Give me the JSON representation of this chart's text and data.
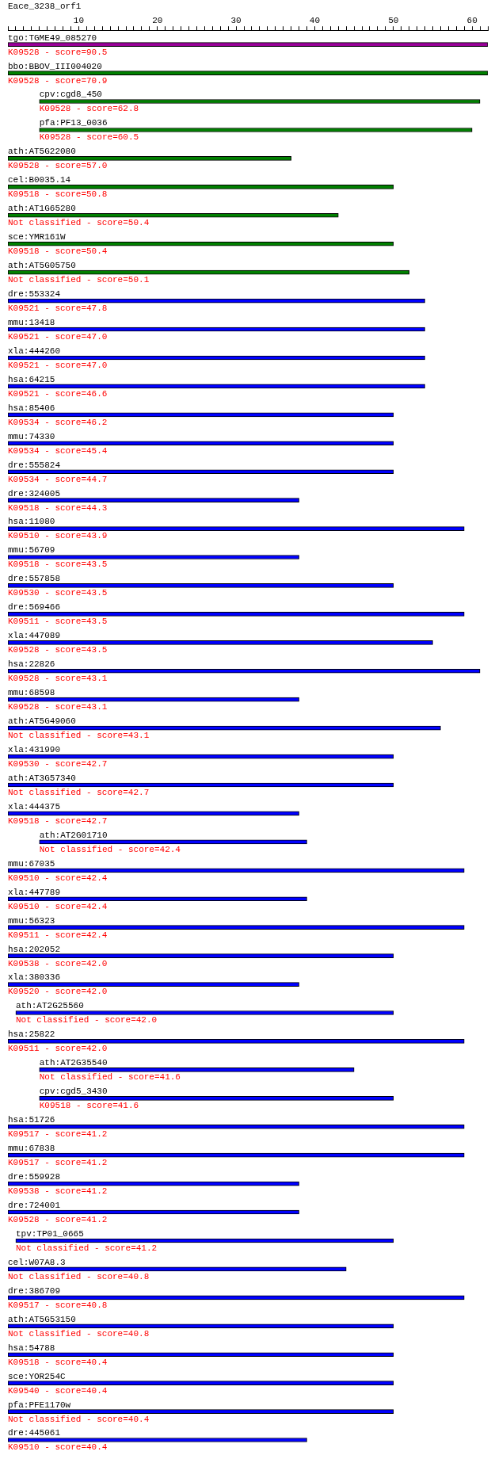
{
  "chart_data": {
    "type": "bar",
    "orientation": "horizontal",
    "title": "Eace_3238_orf1",
    "grid": false,
    "xlim": [
      1,
      62
    ],
    "xticks": [
      {
        "value": 1,
        "label": null
      },
      {
        "value": 2,
        "label": null
      },
      {
        "value": 3,
        "label": null
      },
      {
        "value": 4,
        "label": null
      },
      {
        "value": 5,
        "label": null
      },
      {
        "value": 6,
        "label": null
      },
      {
        "value": 7,
        "label": null
      },
      {
        "value": 8,
        "label": null
      },
      {
        "value": 9,
        "label": null
      },
      10,
      {
        "value": 11,
        "label": null
      },
      {
        "value": 12,
        "label": null
      },
      {
        "value": 13,
        "label": null
      },
      {
        "value": 14,
        "label": null
      },
      {
        "value": 15,
        "label": null
      },
      {
        "value": 16,
        "label": null
      },
      {
        "value": 17,
        "label": null
      },
      {
        "value": 18,
        "label": null
      },
      {
        "value": 19,
        "label": null
      },
      20,
      {
        "value": 21,
        "label": null
      },
      {
        "value": 22,
        "label": null
      },
      {
        "value": 23,
        "label": null
      },
      {
        "value": 24,
        "label": null
      },
      {
        "value": 25,
        "label": null
      },
      {
        "value": 26,
        "label": null
      },
      {
        "value": 27,
        "label": null
      },
      {
        "value": 28,
        "label": null
      },
      {
        "value": 29,
        "label": null
      },
      30,
      {
        "value": 31,
        "label": null
      },
      {
        "value": 32,
        "label": null
      },
      {
        "value": 33,
        "label": null
      },
      {
        "value": 34,
        "label": null
      },
      {
        "value": 35,
        "label": null
      },
      {
        "value": 36,
        "label": null
      },
      {
        "value": 37,
        "label": null
      },
      {
        "value": 38,
        "label": null
      },
      {
        "value": 39,
        "label": null
      },
      40,
      {
        "value": 41,
        "label": null
      },
      {
        "value": 42,
        "label": null
      },
      {
        "value": 43,
        "label": null
      },
      {
        "value": 44,
        "label": null
      },
      {
        "value": 45,
        "label": null
      },
      {
        "value": 46,
        "label": null
      },
      {
        "value": 47,
        "label": null
      },
      {
        "value": 48,
        "label": null
      },
      {
        "value": 49,
        "label": null
      },
      50,
      {
        "value": 51,
        "label": null
      },
      {
        "value": 52,
        "label": null
      },
      {
        "value": 53,
        "label": null
      },
      {
        "value": 54,
        "label": null
      },
      {
        "value": 55,
        "label": null
      },
      {
        "value": 56,
        "label": null
      },
      {
        "value": 57,
        "label": null
      },
      {
        "value": 58,
        "label": null
      },
      {
        "value": 59,
        "label": null
      },
      60,
      {
        "value": 61,
        "label": null
      },
      {
        "value": 62,
        "label": null
      }
    ],
    "categories": [
      "tgo:TGME49_085270",
      "bbo:BBOV_III004020",
      "cpv:cgd8_450",
      "pfa:PF13_0036",
      "ath:AT5G22080",
      "cel:B0035.14",
      "ath:AT1G65280",
      "sce:YMR161W",
      "ath:AT5G05750",
      "dre:553324",
      "mmu:13418",
      "xla:444260",
      "hsa:64215",
      "hsa:85406",
      "mmu:74330",
      "dre:555824",
      "dre:324005",
      "hsa:11080",
      "mmu:56709",
      "dre:557858",
      "dre:569466",
      "xla:447089",
      "hsa:22826",
      "mmu:68598",
      "ath:AT5G49060",
      "xla:431990",
      "ath:AT3G57340",
      "xla:444375",
      "ath:AT2G01710",
      "mmu:67035",
      "xla:447789",
      "mmu:56323",
      "hsa:202052",
      "xla:380336",
      "ath:AT2G25560",
      "hsa:25822",
      "ath:AT2G35540",
      "cpv:cgd5_3430",
      "hsa:51726",
      "mmu:67838",
      "dre:559928",
      "dre:724001",
      "tpv:TP01_0665",
      "cel:W07A8.3",
      "dre:386709",
      "ath:AT5G53150",
      "hsa:54788",
      "sce:YOR254C",
      "pfa:PFE1170w",
      "dre:445061"
    ],
    "base": [
      1,
      1,
      5,
      5,
      1,
      1,
      1,
      1,
      1,
      1,
      1,
      1,
      1,
      1,
      1,
      1,
      1,
      1,
      1,
      1,
      1,
      1,
      1,
      1,
      1,
      1,
      1,
      1,
      5,
      1,
      1,
      1,
      1,
      1,
      2,
      1,
      5,
      5,
      1,
      1,
      1,
      1,
      2,
      1,
      1,
      1,
      1,
      1,
      1,
      1
    ],
    "values": [
      61,
      61,
      56,
      55,
      36,
      49,
      42,
      49,
      51,
      53,
      53,
      53,
      53,
      49,
      49,
      49,
      37,
      58,
      37,
      49,
      58,
      54,
      60,
      37,
      55,
      49,
      49,
      37,
      34,
      58,
      38,
      58,
      49,
      37,
      48,
      58,
      40,
      45,
      58,
      58,
      37,
      37,
      48,
      43,
      58,
      49,
      49,
      49,
      49,
      38
    ],
    "colors": [
      "#990099",
      "#008000",
      "#008000",
      "#008000",
      "#008000",
      "#008000",
      "#008000",
      "#008000",
      "#008000",
      "#0000ff",
      "#0000ff",
      "#0000ff",
      "#0000ff",
      "#0000ff",
      "#0000ff",
      "#0000ff",
      "#0000ff",
      "#0000ff",
      "#0000ff",
      "#0000ff",
      "#0000ff",
      "#0000ff",
      "#0000ff",
      "#0000ff",
      "#0000ff",
      "#0000ff",
      "#0000ff",
      "#0000ff",
      "#0000ff",
      "#0000ff",
      "#0000ff",
      "#0000ff",
      "#0000ff",
      "#0000ff",
      "#0000ff",
      "#0000ff",
      "#0000ff",
      "#0000ff",
      "#0000ff",
      "#0000ff",
      "#0000ff",
      "#0000ff",
      "#0000ff",
      "#0000ff",
      "#0000ff",
      "#0000ff",
      "#0000ff",
      "#0000ff",
      "#0000ff",
      "#0000ff"
    ],
    "annotations": [
      "K09528 - score=90.5",
      "K09528 - score=70.9",
      "K09528 - score=62.8",
      "K09528 - score=60.5",
      "K09528 - score=57.0",
      "K09518 - score=50.8",
      "Not classified - score=50.4",
      "K09518 - score=50.4",
      "Not classified - score=50.1",
      "K09521 - score=47.8",
      "K09521 - score=47.0",
      "K09521 - score=47.0",
      "K09521 - score=46.6",
      "K09534 - score=46.2",
      "K09534 - score=45.4",
      "K09534 - score=44.7",
      "K09518 - score=44.3",
      "K09510 - score=43.9",
      "K09518 - score=43.5",
      "K09530 - score=43.5",
      "K09511 - score=43.5",
      "K09528 - score=43.5",
      "K09528 - score=43.1",
      "K09528 - score=43.1",
      "Not classified - score=43.1",
      "K09530 - score=42.7",
      "Not classified - score=42.7",
      "K09518 - score=42.7",
      "Not classified - score=42.4",
      "K09510 - score=42.4",
      "K09510 - score=42.4",
      "K09511 - score=42.4",
      "K09538 - score=42.0",
      "K09520 - score=42.0",
      "Not classified - score=42.0",
      "K09511 - score=42.0",
      "Not classified - score=41.6",
      "K09518 - score=41.6",
      "K09517 - score=41.2",
      "K09517 - score=41.2",
      "K09538 - score=41.2",
      "K09528 - score=41.2",
      "Not classified - score=41.2",
      "Not classified - score=40.8",
      "K09517 - score=40.8",
      "Not classified - score=40.8",
      "K09518 - score=40.4",
      "K09540 - score=40.4",
      "Not classified - score=40.4",
      "K09510 - score=40.4"
    ]
  }
}
